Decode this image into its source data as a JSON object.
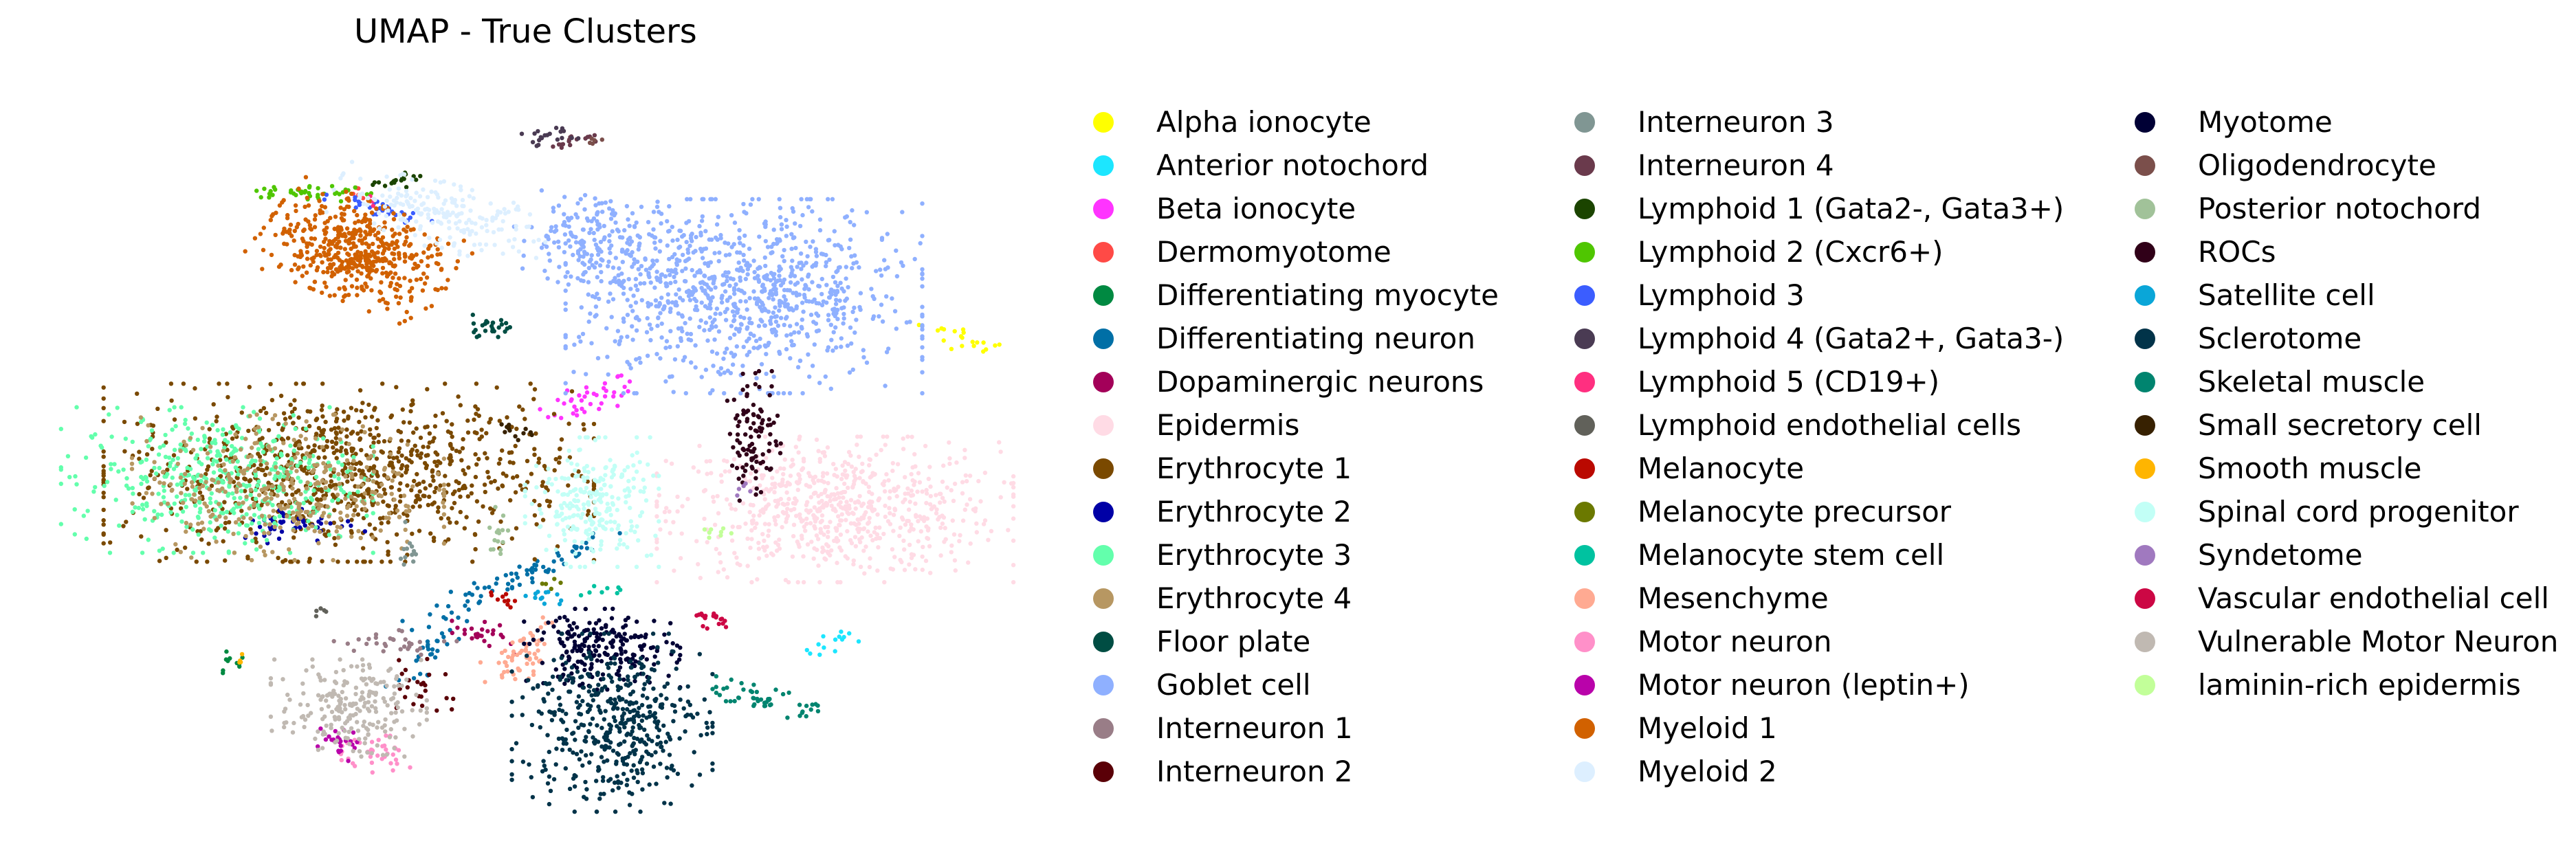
{
  "chart_data": {
    "type": "scatter",
    "title": "UMAP - True Clusters",
    "xlabel": "",
    "ylabel": "",
    "axes_visible": false,
    "grid": false,
    "legend_position": "right",
    "legend_columns": 3,
    "series": [
      {
        "name": "Alpha ionocyte",
        "color": "#ffff00",
        "clusters": [
          {
            "cx": 9.0,
            "cy": 6.4,
            "sx": 0.25,
            "sy": 0.08,
            "n": 20,
            "rot": -0.5
          }
        ]
      },
      {
        "name": "Anterior notochord",
        "color": "#1ce6ff",
        "clusters": [
          {
            "cx": 7.7,
            "cy": 2.3,
            "sx": 0.18,
            "sy": 0.06,
            "n": 14,
            "rot": 0.5
          }
        ]
      },
      {
        "name": "Beta ionocyte",
        "color": "#ff34ff",
        "clusters": [
          {
            "cx": 5.3,
            "cy": 5.6,
            "sx": 0.25,
            "sy": 0.1,
            "n": 40,
            "rot": 0.5
          }
        ]
      },
      {
        "name": "Dermomyotome",
        "color": "#ff4a46",
        "clusters": [
          {
            "cx": 3.0,
            "cy": 8.4,
            "sx": 0.05,
            "sy": 0.05,
            "n": 6,
            "rot": 0
          }
        ]
      },
      {
        "name": "Differentiating myocyte",
        "color": "#008941",
        "clusters": [
          {
            "cx": 1.7,
            "cy": 2.0,
            "sx": 0.1,
            "sy": 0.1,
            "n": 10,
            "rot": 0
          }
        ]
      },
      {
        "name": "Differentiating neuron",
        "color": "#006fa6",
        "clusters": [
          {
            "cx": 4.6,
            "cy": 3.2,
            "sx": 0.6,
            "sy": 0.08,
            "n": 70,
            "rot": 0.55
          },
          {
            "cx": 3.7,
            "cy": 2.2,
            "sx": 0.3,
            "sy": 0.08,
            "n": 30,
            "rot": 1.0
          }
        ]
      },
      {
        "name": "Dopaminergic neurons",
        "color": "#a30059",
        "clusters": [
          {
            "cx": 4.2,
            "cy": 2.4,
            "sx": 0.18,
            "sy": 0.08,
            "n": 25,
            "rot": -0.3
          }
        ]
      },
      {
        "name": "Epidermis",
        "color": "#ffdbe5",
        "clusters": [
          {
            "cx": 7.7,
            "cy": 4.1,
            "sx": 0.8,
            "sy": 0.45,
            "n": 700,
            "rot": 0
          }
        ]
      },
      {
        "name": "Erythrocyte 1",
        "color": "#7a4900",
        "clusters": [
          {
            "cx": 2.9,
            "cy": 4.6,
            "sx": 1.1,
            "sy": 0.55,
            "n": 900,
            "rot": 0
          }
        ]
      },
      {
        "name": "Erythrocyte 2",
        "color": "#0000a6",
        "clusters": [
          {
            "cx": 2.4,
            "cy": 3.9,
            "sx": 0.3,
            "sy": 0.12,
            "n": 45,
            "rot": 0
          }
        ]
      },
      {
        "name": "Erythrocyte 3",
        "color": "#63ffac",
        "clusters": [
          {
            "cx": 1.6,
            "cy": 4.5,
            "sx": 0.7,
            "sy": 0.45,
            "n": 450,
            "rot": 0
          }
        ]
      },
      {
        "name": "Erythrocyte 4",
        "color": "#b79762",
        "clusters": [
          {
            "cx": 2.3,
            "cy": 4.4,
            "sx": 0.7,
            "sy": 0.45,
            "n": 350,
            "rot": 0
          }
        ]
      },
      {
        "name": "Floor plate",
        "color": "#004d43",
        "clusters": [
          {
            "cx": 4.3,
            "cy": 6.6,
            "sx": 0.12,
            "sy": 0.07,
            "n": 25,
            "rot": 0
          }
        ]
      },
      {
        "name": "Goblet cell",
        "color": "#8fb0ff",
        "clusters": [
          {
            "cx": 6.8,
            "cy": 7.0,
            "sx": 0.8,
            "sy": 0.6,
            "n": 900,
            "rot": 0
          },
          {
            "cx": 5.4,
            "cy": 7.7,
            "sx": 0.4,
            "sy": 0.3,
            "n": 200,
            "rot": -0.5
          }
        ]
      },
      {
        "name": "Interneuron 1",
        "color": "#997d87",
        "clusters": [
          {
            "cx": 3.4,
            "cy": 2.3,
            "sx": 0.3,
            "sy": 0.08,
            "n": 30,
            "rot": 0
          }
        ]
      },
      {
        "name": "Interneuron 2",
        "color": "#5a0007",
        "clusters": [
          {
            "cx": 3.6,
            "cy": 1.7,
            "sx": 0.15,
            "sy": 0.2,
            "n": 25,
            "rot": 0
          }
        ]
      },
      {
        "name": "Interneuron 3",
        "color": "#809693",
        "clusters": [
          {
            "cx": 3.5,
            "cy": 3.6,
            "sx": 0.05,
            "sy": 0.15,
            "n": 12,
            "rot": 0
          }
        ]
      },
      {
        "name": "Interneuron 4",
        "color": "#6a3a4c",
        "clusters": [
          {
            "cx": 5.1,
            "cy": 9.1,
            "sx": 0.12,
            "sy": 0.05,
            "n": 16,
            "rot": 0.3
          }
        ]
      },
      {
        "name": "Lymphoid 1 (Gata2-, Gata3+)",
        "color": "#1b4400",
        "clusters": [
          {
            "cx": 3.4,
            "cy": 8.6,
            "sx": 0.15,
            "sy": 0.06,
            "n": 18,
            "rot": 0.3
          }
        ]
      },
      {
        "name": "Lymphoid 2 (Cxcr6+)",
        "color": "#4fc601",
        "clusters": [
          {
            "cx": 2.5,
            "cy": 8.4,
            "sx": 0.3,
            "sy": 0.05,
            "n": 40,
            "rot": 0
          }
        ]
      },
      {
        "name": "Lymphoid 3",
        "color": "#3b5dff",
        "clusters": [
          {
            "cx": 3.2,
            "cy": 8.2,
            "sx": 0.25,
            "sy": 0.06,
            "n": 30,
            "rot": -0.3
          }
        ]
      },
      {
        "name": "Lymphoid 4 (Gata2+, Gata3-)",
        "color": "#4a3b53",
        "clusters": [
          {
            "cx": 4.9,
            "cy": 9.2,
            "sx": 0.15,
            "sy": 0.06,
            "n": 20,
            "rot": 0.3
          }
        ]
      },
      {
        "name": "Lymphoid 5 (CD19+)",
        "color": "#ff2f80",
        "clusters": [
          {
            "cx": 3.1,
            "cy": 8.3,
            "sx": 0.04,
            "sy": 0.04,
            "n": 5,
            "rot": 0
          }
        ]
      },
      {
        "name": "Lymphoid endothelial cells",
        "color": "#61615a",
        "clusters": [
          {
            "cx": 2.6,
            "cy": 2.7,
            "sx": 0.04,
            "sy": 0.04,
            "n": 5,
            "rot": 0
          }
        ]
      },
      {
        "name": "Melanocyte",
        "color": "#ba0900",
        "clusters": [
          {
            "cx": 4.4,
            "cy": 2.9,
            "sx": 0.1,
            "sy": 0.06,
            "n": 10,
            "rot": 0
          }
        ]
      },
      {
        "name": "Melanocyte precursor",
        "color": "#6b7900",
        "clusters": [
          {
            "cx": 4.9,
            "cy": 3.1,
            "sx": 0.05,
            "sy": 0.05,
            "n": 5,
            "rot": 0
          }
        ]
      },
      {
        "name": "Melanocyte stem cell",
        "color": "#00c2a0",
        "clusters": [
          {
            "cx": 5.4,
            "cy": 3.0,
            "sx": 0.1,
            "sy": 0.06,
            "n": 8,
            "rot": 0
          }
        ]
      },
      {
        "name": "Mesenchyme",
        "color": "#ffaa92",
        "clusters": [
          {
            "cx": 4.6,
            "cy": 2.1,
            "sx": 0.25,
            "sy": 0.12,
            "n": 60,
            "rot": 0.9
          }
        ]
      },
      {
        "name": "Motor neuron",
        "color": "#ff90c9",
        "clusters": [
          {
            "cx": 3.1,
            "cy": 0.8,
            "sx": 0.22,
            "sy": 0.12,
            "n": 40,
            "rot": -0.2
          }
        ]
      },
      {
        "name": "Motor neuron (leptin+)",
        "color": "#b903aa",
        "clusters": [
          {
            "cx": 2.8,
            "cy": 0.9,
            "sx": 0.12,
            "sy": 0.1,
            "n": 25,
            "rot": 0
          }
        ]
      },
      {
        "name": "Myeloid 1",
        "color": "#d16100",
        "clusters": [
          {
            "cx": 3.0,
            "cy": 7.6,
            "sx": 0.45,
            "sy": 0.3,
            "n": 500,
            "rot": -0.5
          }
        ]
      },
      {
        "name": "Myeloid 2",
        "color": "#ddefff",
        "clusters": [
          {
            "cx": 3.8,
            "cy": 8.1,
            "sx": 0.5,
            "sy": 0.2,
            "n": 200,
            "rot": -0.4
          }
        ]
      },
      {
        "name": "Myotome",
        "color": "#000035",
        "clusters": [
          {
            "cx": 5.4,
            "cy": 2.2,
            "sx": 0.35,
            "sy": 0.25,
            "n": 220,
            "rot": 0
          }
        ]
      },
      {
        "name": "Oligodendrocyte",
        "color": "#7b4f4b",
        "clusters": [
          {
            "cx": 5.3,
            "cy": 9.1,
            "sx": 0.06,
            "sy": 0.04,
            "n": 5,
            "rot": 0
          }
        ]
      },
      {
        "name": "Posterior notochord",
        "color": "#a1c299",
        "clusters": [
          {
            "cx": 4.4,
            "cy": 3.8,
            "sx": 0.05,
            "sy": 0.2,
            "n": 15,
            "rot": 0
          }
        ]
      },
      {
        "name": "ROCs",
        "color": "#300018",
        "clusters": [
          {
            "cx": 6.9,
            "cy": 5.1,
            "sx": 0.12,
            "sy": 0.4,
            "n": 100,
            "rot": 0
          }
        ]
      },
      {
        "name": "Satellite cell",
        "color": "#0aa6d8",
        "clusters": [
          {
            "cx": 4.9,
            "cy": 2.9,
            "sx": 0.12,
            "sy": 0.06,
            "n": 12,
            "rot": 0
          }
        ]
      },
      {
        "name": "Sclerotome",
        "color": "#013349",
        "clusters": [
          {
            "cx": 5.5,
            "cy": 1.2,
            "sx": 0.45,
            "sy": 0.55,
            "n": 450,
            "rot": 0
          }
        ]
      },
      {
        "name": "Skeletal muscle",
        "color": "#00846f",
        "clusters": [
          {
            "cx": 7.0,
            "cy": 1.5,
            "sx": 0.25,
            "sy": 0.08,
            "n": 50,
            "rot": -0.3
          }
        ]
      },
      {
        "name": "Small secretory cell",
        "color": "#372101",
        "clusters": [
          {
            "cx": 4.5,
            "cy": 5.2,
            "sx": 0.1,
            "sy": 0.04,
            "n": 12,
            "rot": -0.6
          }
        ]
      },
      {
        "name": "Smooth muscle",
        "color": "#ffb500",
        "clusters": [
          {
            "cx": 1.85,
            "cy": 2.05,
            "sx": 0.04,
            "sy": 0.04,
            "n": 4,
            "rot": 0
          }
        ]
      },
      {
        "name": "Spinal cord progenitor",
        "color": "#c2fff6",
        "clusters": [
          {
            "cx": 5.3,
            "cy": 4.2,
            "sx": 0.3,
            "sy": 0.4,
            "n": 250,
            "rot": 0
          }
        ]
      },
      {
        "name": "Syndetome",
        "color": "#a079bf",
        "clusters": [
          {
            "cx": 6.8,
            "cy": 4.4,
            "sx": 0.05,
            "sy": 0.05,
            "n": 5,
            "rot": 0
          }
        ]
      },
      {
        "name": "Vascular endothelial cell",
        "color": "#cc0744",
        "clusters": [
          {
            "cx": 6.5,
            "cy": 2.6,
            "sx": 0.15,
            "sy": 0.06,
            "n": 20,
            "rot": -0.3
          }
        ]
      },
      {
        "name": "Vulnerable Motor Neuron",
        "color": "#c0b9b2",
        "clusters": [
          {
            "cx": 2.9,
            "cy": 1.4,
            "sx": 0.35,
            "sy": 0.3,
            "n": 220,
            "rot": 0
          }
        ]
      },
      {
        "name": "laminin-rich epidermis",
        "color": "#c2ff99",
        "clusters": [
          {
            "cx": 6.5,
            "cy": 3.8,
            "sx": 0.08,
            "sy": 0.04,
            "n": 8,
            "rot": 0
          }
        ]
      }
    ],
    "xlim": [
      0,
      9.5
    ],
    "ylim": [
      0,
      10
    ]
  }
}
